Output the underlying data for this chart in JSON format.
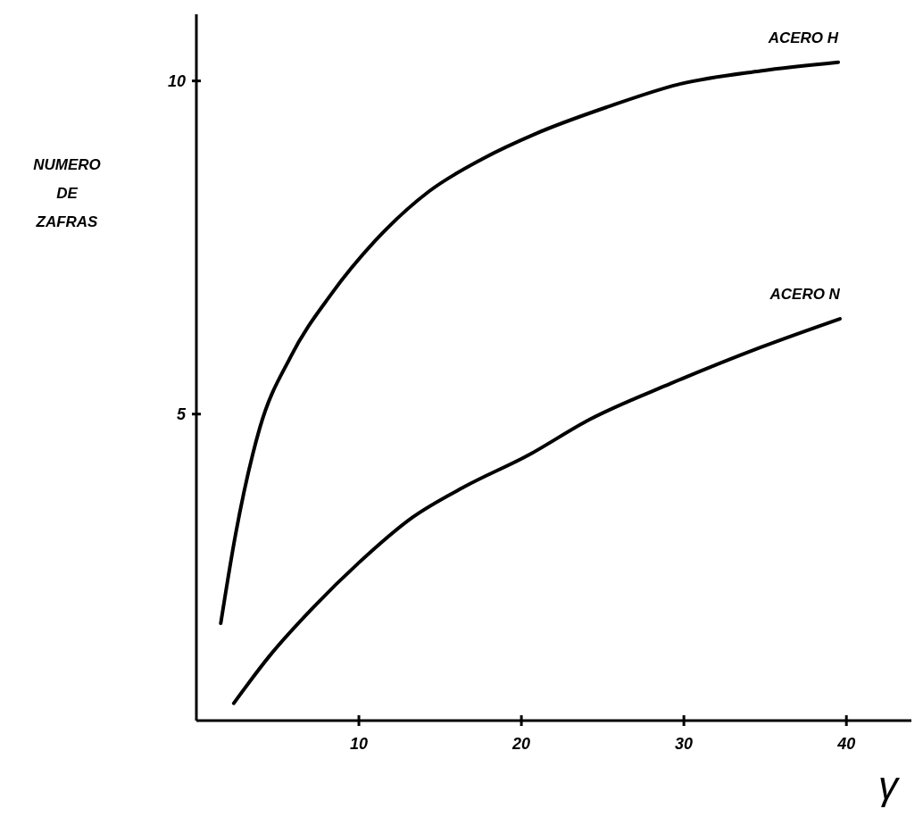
{
  "chart_data": {
    "type": "line",
    "ylabel": "NUMERO DE ZAFRAS",
    "xlabel": "γ",
    "xlim": [
      0,
      44
    ],
    "ylim": [
      0.4,
      11
    ],
    "xticks": [
      10,
      20,
      30,
      40
    ],
    "yticks": [
      5,
      10
    ],
    "grid": false,
    "marker": "none",
    "line_style": "solid",
    "series": [
      {
        "name": "ACERO H",
        "color": "#000000",
        "x": [
          1.5,
          2.4,
          3.9,
          5.8,
          8.3,
          11.0,
          14.3,
          17.6,
          20.9,
          25.3,
          29.7,
          34.7,
          39.5
        ],
        "values": [
          1.86,
          3.18,
          4.79,
          5.86,
          6.8,
          7.6,
          8.34,
          8.83,
          9.21,
          9.61,
          9.95,
          10.15,
          10.28
        ]
      },
      {
        "name": "ACERO N",
        "color": "#000000",
        "x": [
          2.3,
          4.5,
          7.2,
          10,
          13.3,
          16.5,
          20.4,
          24.2,
          29.2,
          34.7,
          39.6
        ],
        "values": [
          0.66,
          1.37,
          2.1,
          2.77,
          3.45,
          3.91,
          4.38,
          4.92,
          5.46,
          6.0,
          6.43
        ]
      }
    ]
  }
}
